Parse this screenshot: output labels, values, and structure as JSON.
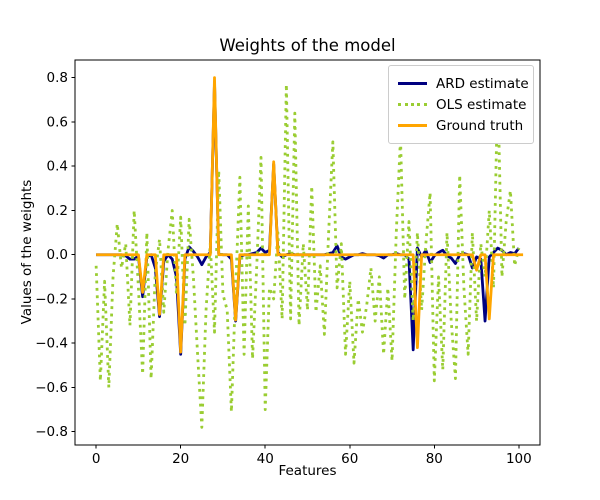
{
  "chart_data": {
    "type": "line",
    "title": "Weights of the model",
    "xlabel": "Features",
    "ylabel": "Values of the weights",
    "x_range": [
      0,
      100
    ],
    "xlim": [
      -5,
      105
    ],
    "ylim": [
      -0.86,
      0.88
    ],
    "grid": false,
    "legend_position": "upper right",
    "x_ticks": [
      0,
      20,
      40,
      60,
      80,
      100
    ],
    "x_tick_labels": [
      "0",
      "20",
      "40",
      "60",
      "80",
      "100"
    ],
    "y_ticks": [
      0.8,
      0.6,
      0.4,
      0.2,
      0.0,
      -0.2,
      -0.4,
      -0.6,
      -0.8
    ],
    "y_tick_labels": [
      "0.8",
      "0.6",
      "0.4",
      "0.2",
      "0.0",
      "−0.2",
      "−0.4",
      "−0.6",
      "−0.8"
    ],
    "series": [
      {
        "name": "ARD estimate",
        "color": "#000080",
        "style": "solid",
        "values": [
          0,
          0,
          0,
          0,
          0,
          0,
          0,
          -0.005,
          -0.02,
          -0.02,
          -0.005,
          -0.19,
          -0.01,
          0,
          -0.06,
          -0.28,
          -0.03,
          0,
          -0.02,
          -0.1,
          -0.45,
          -0.02,
          0.035,
          0.015,
          -0.01,
          -0.045,
          -0.01,
          0.01,
          0.78,
          0.005,
          0,
          0,
          -0.02,
          -0.3,
          -0.01,
          0,
          0,
          0.005,
          0.01,
          0.03,
          0.01,
          0.02,
          0.41,
          0.01,
          -0.01,
          0,
          0.005,
          0,
          0,
          0,
          0,
          0,
          0,
          0,
          0,
          0.005,
          0.01,
          0.04,
          -0.01,
          -0.02,
          -0.01,
          0,
          0,
          0.005,
          0,
          0,
          0,
          -0.005,
          -0.015,
          0,
          0,
          0.005,
          0,
          0,
          -0.02,
          -0.43,
          0.03,
          -0.01,
          0.02,
          -0.035,
          -0.005,
          0.01,
          0.02,
          -0.005,
          -0.015,
          -0.04,
          0,
          0.005,
          0,
          -0.06,
          -0.01,
          -0.02,
          -0.3,
          -0.01,
          0.01,
          0.03,
          0.02,
          0,
          0.01,
          0.005,
          0.03
        ]
      },
      {
        "name": "OLS estimate",
        "color": "#9acd32",
        "style": "dotted",
        "values": [
          -0.05,
          -0.57,
          -0.12,
          -0.6,
          -0.1,
          0.14,
          -0.06,
          0.05,
          -0.32,
          0.2,
          -0.15,
          -0.54,
          0.1,
          -0.56,
          -0.08,
          0.07,
          -0.26,
          0.02,
          0.2,
          -0.18,
          0.17,
          -0.32,
          0.16,
          -0.1,
          -0.45,
          -0.78,
          -0.25,
          0.05,
          -0.35,
          0.38,
          -0.18,
          -0.25,
          -0.71,
          -0.15,
          0.35,
          -0.45,
          0.22,
          -0.47,
          -0.05,
          0.44,
          -0.7,
          -0.15,
          -0.2,
          0.1,
          -0.29,
          0.77,
          -0.29,
          0.64,
          -0.32,
          0.05,
          -0.25,
          0.31,
          -0.26,
          -0.05,
          -0.36,
          0.1,
          0.51,
          -0.15,
          0.05,
          -0.45,
          -0.12,
          -0.49,
          -0.2,
          -0.35,
          -0.23,
          -0.06,
          -0.3,
          -0.1,
          -0.45,
          -0.15,
          -0.48,
          0.1,
          0.53,
          -0.2,
          0.15,
          -0.3,
          0.1,
          -0.25,
          0.05,
          0.28,
          -0.57,
          -0.1,
          -0.52,
          0.1,
          -0.3,
          -0.56,
          0.36,
          -0.15,
          -0.45,
          0.1,
          -0.3,
          0.05,
          -0.1,
          0.2,
          -0.15,
          0.76,
          -0.1,
          0.15,
          0.29,
          -0.05,
          0.03
        ]
      },
      {
        "name": "Ground truth",
        "color": "#ffa500",
        "style": "solid",
        "values": [
          0,
          0,
          0,
          0,
          0,
          0,
          0,
          0,
          0,
          0,
          0,
          -0.17,
          0,
          0,
          0,
          -0.27,
          0,
          0,
          0,
          0,
          -0.44,
          0,
          0,
          0,
          0,
          0,
          0,
          0,
          0.8,
          0,
          0,
          0,
          0,
          -0.295,
          0,
          0,
          0,
          0,
          0,
          0,
          0,
          0,
          0.42,
          0,
          0,
          0,
          0,
          0,
          0,
          0,
          0,
          0,
          0,
          0,
          0,
          0,
          0,
          0,
          0,
          0,
          0,
          0,
          0,
          0,
          0,
          0,
          0,
          0,
          0,
          0,
          0,
          0,
          0,
          0,
          0,
          0,
          -0.42,
          0,
          0,
          0,
          0,
          0,
          0,
          0,
          0,
          0,
          0,
          0,
          0,
          0,
          -0.07,
          0,
          0,
          -0.29,
          0,
          0,
          0,
          0,
          0,
          0,
          0,
          0
        ]
      }
    ]
  }
}
